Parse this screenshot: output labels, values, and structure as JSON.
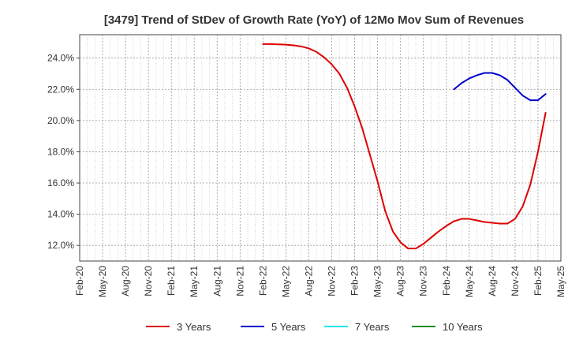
{
  "chart_data": {
    "type": "line",
    "title": "[3479]  Trend of StDev of Growth Rate (YoY) of 12Mo Mov Sum of Revenues",
    "xlabel": "",
    "ylabel": "",
    "ylim": [
      11.0,
      25.5
    ],
    "y_ticks": [
      12.0,
      14.0,
      16.0,
      18.0,
      20.0,
      22.0,
      24.0
    ],
    "y_tick_labels": [
      "12.0%",
      "14.0%",
      "16.0%",
      "18.0%",
      "20.0%",
      "22.0%",
      "24.0%"
    ],
    "x_tick_labels": [
      "Feb-20",
      "May-20",
      "Aug-20",
      "Nov-20",
      "Feb-21",
      "May-21",
      "Aug-21",
      "Nov-21",
      "Feb-22",
      "May-22",
      "Aug-22",
      "Nov-22",
      "Feb-23",
      "May-23",
      "Aug-23",
      "Nov-23",
      "Feb-24",
      "May-24",
      "Aug-24",
      "Nov-24",
      "Feb-25",
      "May-25"
    ],
    "x_range_months": [
      0,
      63
    ],
    "grid": true,
    "legend_position": "bottom",
    "series": [
      {
        "name": "3 Years",
        "color": "#dd0000",
        "x": [
          24,
          25,
          26,
          27,
          28,
          29,
          30,
          31,
          32,
          33,
          34,
          35,
          36,
          37,
          38,
          39,
          40,
          41,
          42,
          43,
          44,
          45,
          46,
          47,
          48,
          49,
          50,
          51,
          52,
          53,
          54,
          55,
          56,
          57,
          58,
          59,
          60
        ],
        "values": [
          24.9,
          24.9,
          24.88,
          24.86,
          24.82,
          24.75,
          24.62,
          24.4,
          24.05,
          23.6,
          23.0,
          22.1,
          20.9,
          19.5,
          17.8,
          16.1,
          14.2,
          12.9,
          12.2,
          11.8,
          11.8,
          12.1,
          12.5,
          12.9,
          13.25,
          13.55,
          13.7,
          13.7,
          13.6,
          13.5,
          13.45,
          13.4,
          13.4,
          13.7,
          14.5,
          15.9,
          18.0
        ]
      },
      {
        "name": "3 Years",
        "color": "#dd0000",
        "x": [
          60,
          61
        ],
        "values": [
          18.0,
          20.5
        ]
      },
      {
        "name": "5 Years",
        "color": "#0000cc",
        "x": [
          49,
          50,
          51,
          52,
          53,
          54,
          55,
          56,
          57,
          58,
          59,
          60,
          61
        ],
        "values": [
          22.0,
          22.4,
          22.7,
          22.9,
          23.05,
          23.05,
          22.9,
          22.6,
          22.1,
          21.6,
          21.3,
          21.3,
          21.7
        ]
      },
      {
        "name": "7 Years",
        "color": "#00e5ee",
        "x": [],
        "values": []
      },
      {
        "name": "10 Years",
        "color": "#228b22",
        "x": [],
        "values": []
      }
    ],
    "legend": [
      {
        "name": "3 Years",
        "color": "#dd0000"
      },
      {
        "name": "5 Years",
        "color": "#0000cc"
      },
      {
        "name": "7 Years",
        "color": "#00e5ee"
      },
      {
        "name": "10 Years",
        "color": "#228b22"
      }
    ]
  }
}
